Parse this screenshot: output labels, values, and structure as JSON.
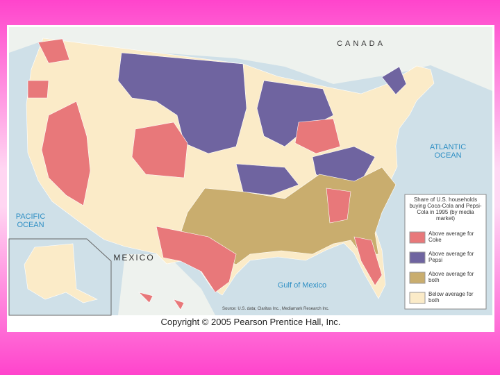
{
  "map": {
    "labels": {
      "canada": "CANADA",
      "atlantic": "ATLANTIC OCEAN",
      "pacific": "PACIFIC OCEAN",
      "mexico": "MEXICO",
      "gulf": "Gulf of Mexico"
    },
    "legend": {
      "title": "Share of U.S. households buying Coca-Cola and Pepsi-Cola in 1995 (by media market)",
      "items": [
        {
          "label": "Above average for Coke",
          "color": "#e8787a"
        },
        {
          "label": "Above average for Pepsi",
          "color": "#6f64a0"
        },
        {
          "label": "Above average for both",
          "color": "#c9ad6e"
        },
        {
          "label": "Below average for both",
          "color": "#fbebc8"
        }
      ]
    },
    "source": "Source: U.S. data; Claritas Inc., Mediamark Research Inc."
  },
  "copyright": "Copyright © 2005 Pearson Prentice Hall, Inc."
}
